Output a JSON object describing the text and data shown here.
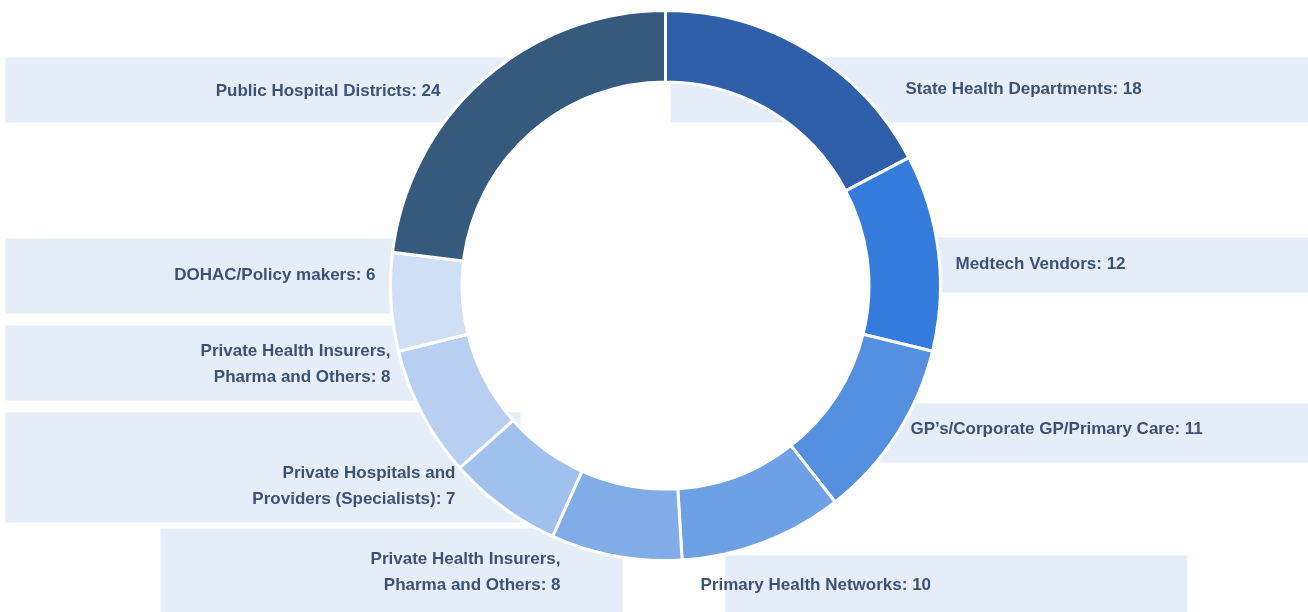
{
  "chart_data": {
    "type": "donut",
    "categories": [
      null,
      null,
      null,
      null,
      null,
      null,
      null,
      null,
      null
    ],
    "values": [
      18,
      12,
      11,
      10,
      8,
      7,
      8,
      6,
      24
    ],
    "value_labels": [
      "State Health Departments: 18",
      "Medtech Vendors: 12",
      "GP’s/Corporate GP/Primary Care: 11",
      "Primary Health Networks: 10",
      "Private Health Insurers, Pharma and Others: 8",
      "Private Hospitals and Providers (Specialists): 7",
      "Private Health Insurers, Pharma and Others: 8",
      "DOHAC/Policy makers: 6",
      "Public Hospital Districts: 24"
    ],
    "colors": [
      "#2f5fa8",
      "#347bdb",
      "#5590e0",
      "#6ea0e6",
      "#80ace8",
      "#a0c0ee",
      "#b8cff2",
      "#cfdff6",
      "#355a7e"
    ]
  }
}
